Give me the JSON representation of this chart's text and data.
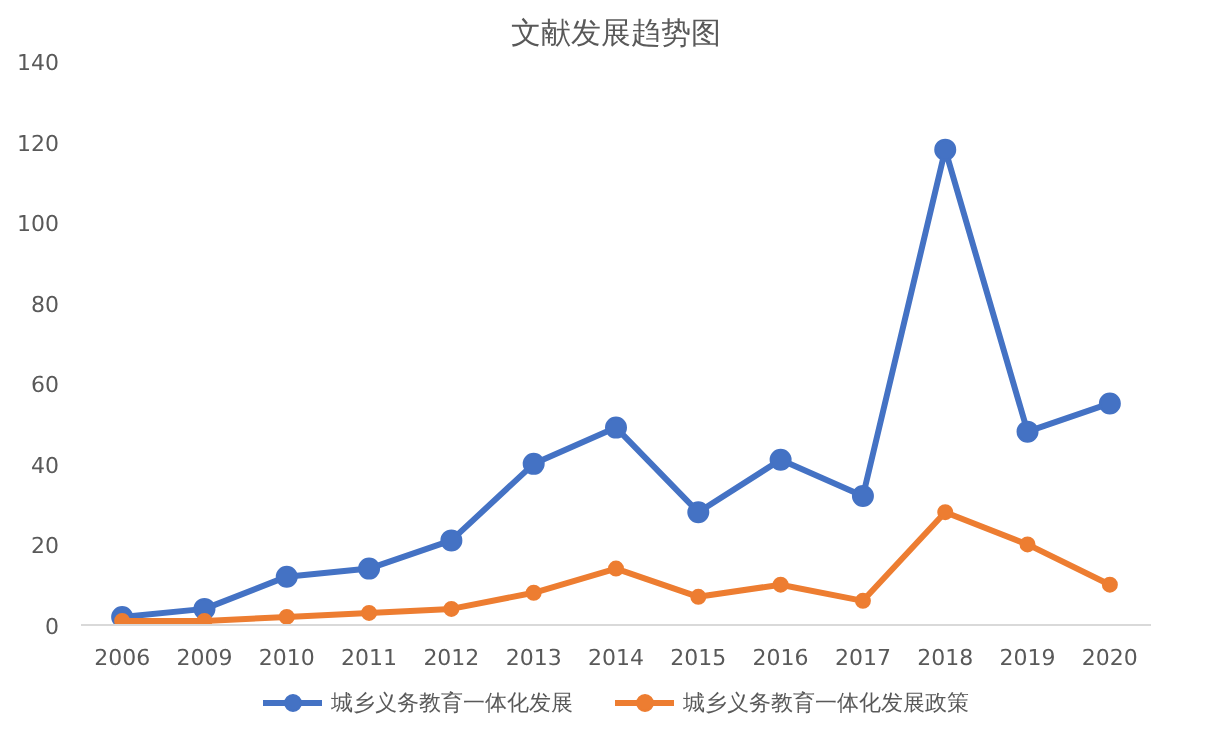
{
  "chart_data": {
    "type": "line",
    "title": "文献发展趋势图",
    "categories": [
      "2006",
      "2009",
      "2010",
      "2011",
      "2012",
      "2013",
      "2014",
      "2015",
      "2016",
      "2017",
      "2018",
      "2019",
      "2020"
    ],
    "series": [
      {
        "name": "城乡义务教育一体化发展",
        "color": "#4472c4",
        "values": [
          2,
          4,
          12,
          14,
          21,
          40,
          49,
          28,
          41,
          32,
          118,
          48,
          55
        ]
      },
      {
        "name": "城乡义务教育一体化发展政策",
        "color": "#ed7d31",
        "values": [
          1,
          1,
          2,
          3,
          4,
          8,
          14,
          7,
          10,
          6,
          28,
          20,
          10
        ]
      }
    ],
    "ylim": [
      0,
      140
    ],
    "yticks": [
      0,
      20,
      40,
      60,
      80,
      100,
      120,
      140
    ],
    "grid": false,
    "legend": "bottom",
    "marker": "circle",
    "line_style": "solid"
  }
}
